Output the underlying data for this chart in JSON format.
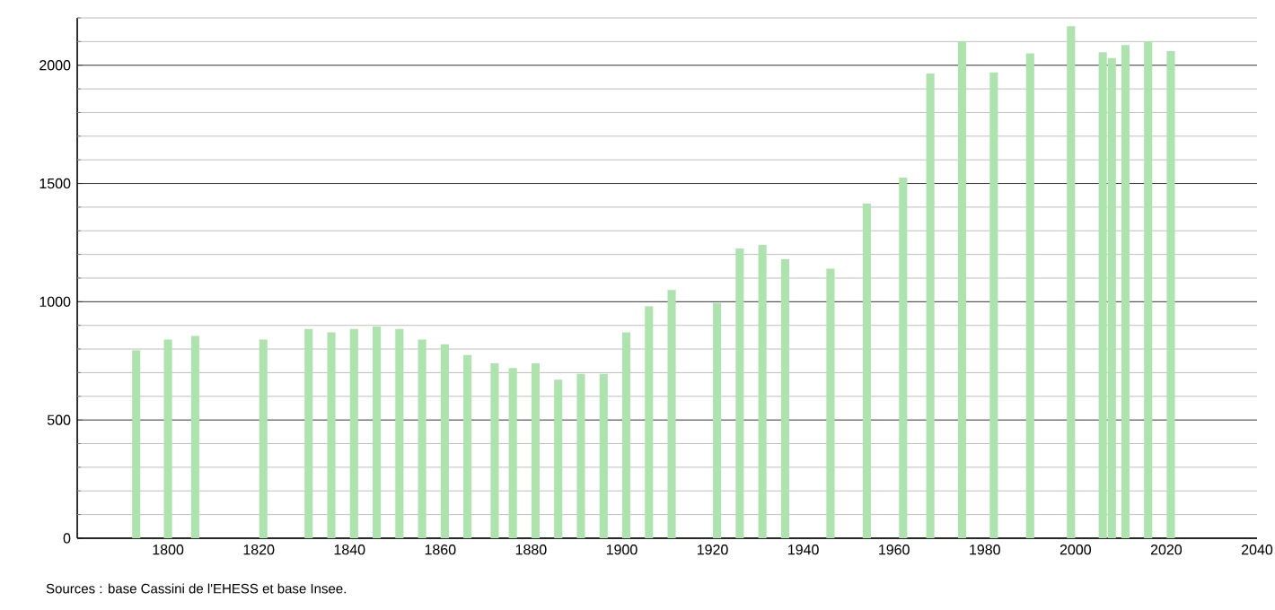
{
  "chart_data": {
    "type": "bar",
    "color": "#ade3ad",
    "grid": "y",
    "x": [
      1793,
      1800,
      1806,
      1821,
      1831,
      1836,
      1841,
      1846,
      1851,
      1856,
      1861,
      1866,
      1872,
      1876,
      1881,
      1886,
      1891,
      1896,
      1901,
      1906,
      1911,
      1921,
      1926,
      1931,
      1936,
      1946,
      1954,
      1962,
      1968,
      1975,
      1982,
      1990,
      1999,
      2006,
      2008,
      2011,
      2016,
      2021
    ],
    "values": [
      795,
      840,
      855,
      840,
      885,
      870,
      885,
      895,
      885,
      840,
      820,
      775,
      740,
      720,
      740,
      670,
      695,
      695,
      870,
      980,
      1050,
      995,
      1225,
      1240,
      1180,
      1140,
      1415,
      1525,
      1965,
      2100,
      1970,
      2050,
      2165,
      2055,
      2030,
      2085,
      2100,
      2060
    ],
    "xlim": [
      1780,
      2040
    ],
    "xticks": [
      1800,
      1820,
      1840,
      1860,
      1880,
      1900,
      1920,
      1940,
      1960,
      1980,
      2000,
      2020,
      2040
    ],
    "ylim": [
      0,
      2200
    ],
    "yticks": [
      0,
      {
        "value": 100,
        "label": null
      },
      {
        "value": 200,
        "label": null
      },
      {
        "value": 300,
        "label": null
      },
      {
        "value": 400,
        "label": null
      },
      500,
      {
        "value": 600,
        "label": null
      },
      {
        "value": 700,
        "label": null
      },
      {
        "value": 800,
        "label": null
      },
      {
        "value": 900,
        "label": null
      },
      1000,
      {
        "value": 1100,
        "label": null
      },
      {
        "value": 1200,
        "label": null
      },
      {
        "value": 1300,
        "label": null
      },
      {
        "value": 1400,
        "label": null
      },
      1500,
      {
        "value": 1600,
        "label": null
      },
      {
        "value": 1700,
        "label": null
      },
      {
        "value": 1800,
        "label": null
      },
      {
        "value": 1900,
        "label": null
      },
      2000,
      {
        "value": 2100,
        "label": null
      },
      {
        "value": 2200,
        "label": null
      }
    ],
    "annotations": [
      "Sources : base Cassini de l'EHESS et base Insee."
    ]
  }
}
